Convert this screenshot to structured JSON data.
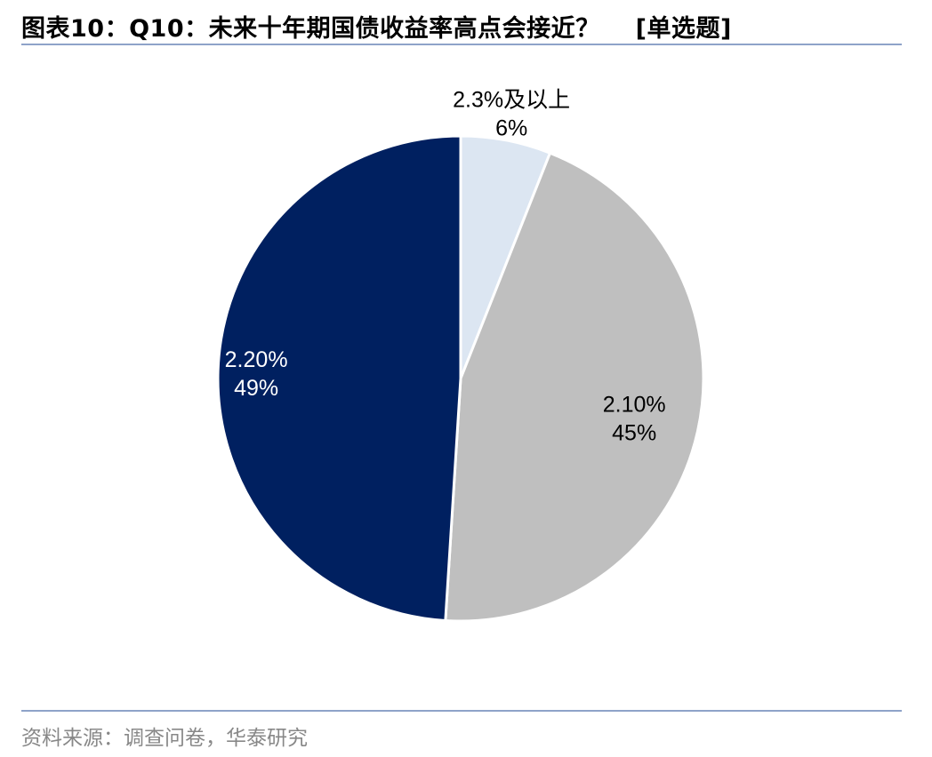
{
  "figure": {
    "title": "图表10：",
    "question": "Q10：未来十年期国债收益率高点会接近？",
    "tag": "[单选题]",
    "source": "资料来源：调查问卷，华泰研究"
  },
  "chart_data": {
    "type": "pie",
    "start_angle": "12 o'clock",
    "direction": "clockwise",
    "slices": [
      {
        "label": "2.3%及以上",
        "percent_label": "6%",
        "value": 6,
        "color": "#dce6f2"
      },
      {
        "label": "2.10%",
        "percent_label": "45%",
        "value": 45,
        "color": "#bfbfbf"
      },
      {
        "label": "2.20%",
        "percent_label": "49%",
        "value": 49,
        "color": "#002060"
      }
    ],
    "label_colors": [
      "#000000",
      "#000000",
      "#ffffff"
    ]
  }
}
